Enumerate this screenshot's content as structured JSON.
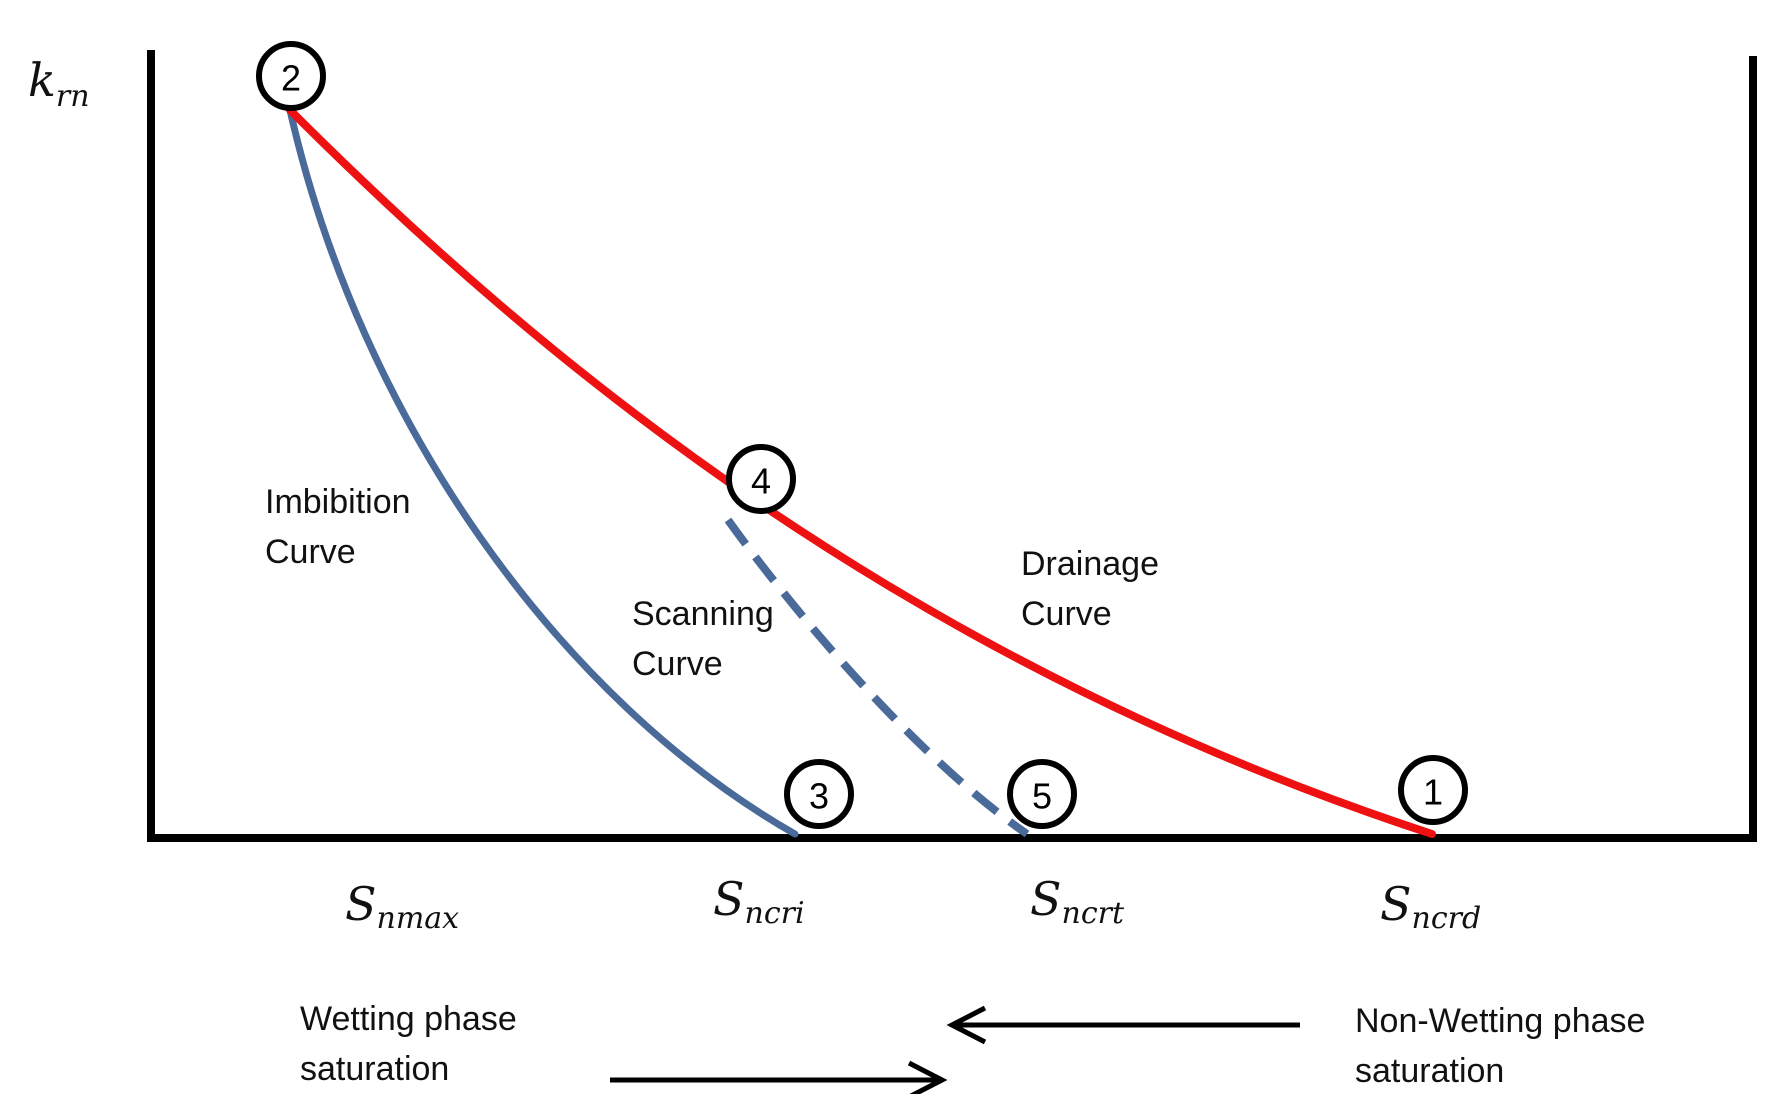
{
  "y_axis_label": {
    "main": "k",
    "sub": "rn"
  },
  "x_tick_labels": [
    {
      "main": "S",
      "sub": "nmax"
    },
    {
      "main": "S",
      "sub": "ncri"
    },
    {
      "main": "S",
      "sub": "ncrt"
    },
    {
      "main": "S",
      "sub": "ncrd"
    }
  ],
  "curve_labels": {
    "imbibition": [
      "Imbibition",
      "Curve"
    ],
    "scanning": [
      "Scanning",
      "Curve"
    ],
    "drainage": [
      "Drainage",
      "Curve"
    ]
  },
  "points": [
    "2",
    "4",
    "3",
    "5",
    "1"
  ],
  "directions": {
    "wetting": [
      "Wetting phase",
      "saturation"
    ],
    "non_wetting": [
      "Non-Wetting phase",
      "saturation"
    ]
  },
  "colors": {
    "drainage_curve": "#ee1111",
    "imbibition_curve": "#4a6a9a",
    "scanning_curve": "#4a6a9a",
    "axes": "#000000"
  }
}
